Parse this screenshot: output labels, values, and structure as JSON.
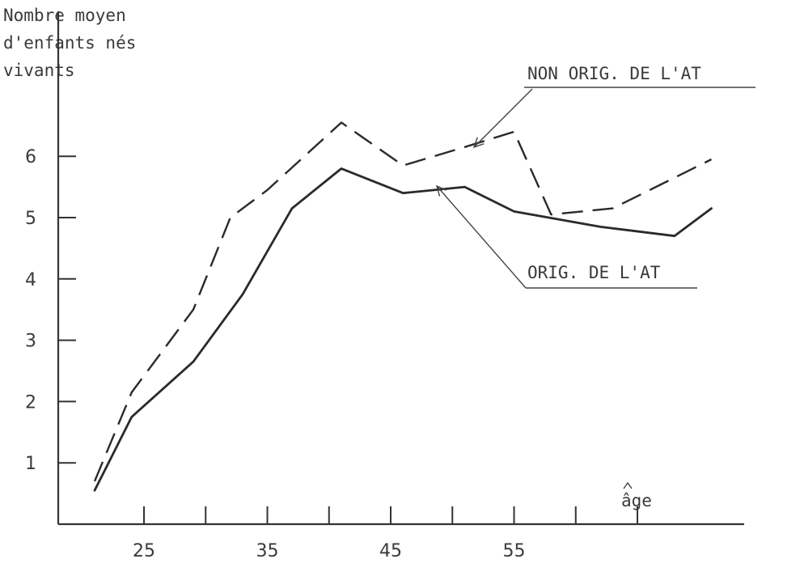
{
  "chart_data": {
    "type": "line",
    "ylabel_lines": [
      "Nombre moyen",
      "d'enfants nés",
      "vivants"
    ],
    "xlabel": "âge",
    "x_ticks": [
      25,
      35,
      45,
      55
    ],
    "y_ticks": [
      1,
      2,
      3,
      4,
      5,
      6
    ],
    "xlim": [
      18,
      74
    ],
    "ylim": [
      0,
      7.0
    ],
    "grid": false,
    "series": [
      {
        "name": "ORIG. DE L'AT",
        "style": "solid",
        "x": [
          21,
          24,
          29,
          33,
          37,
          41,
          46,
          51,
          55,
          62,
          68,
          71
        ],
        "y": [
          0.55,
          1.75,
          2.65,
          3.75,
          5.15,
          5.8,
          5.4,
          5.5,
          5.1,
          4.85,
          4.7,
          5.15
        ]
      },
      {
        "name": "NON ORIG. DE L'AT",
        "style": "dashed",
        "x": [
          21,
          24,
          29,
          32,
          35,
          41,
          46,
          51,
          55,
          58,
          63,
          71
        ],
        "y": [
          0.7,
          2.15,
          3.5,
          5.0,
          5.45,
          6.55,
          5.85,
          6.15,
          6.4,
          5.05,
          5.15,
          5.95
        ]
      }
    ]
  }
}
